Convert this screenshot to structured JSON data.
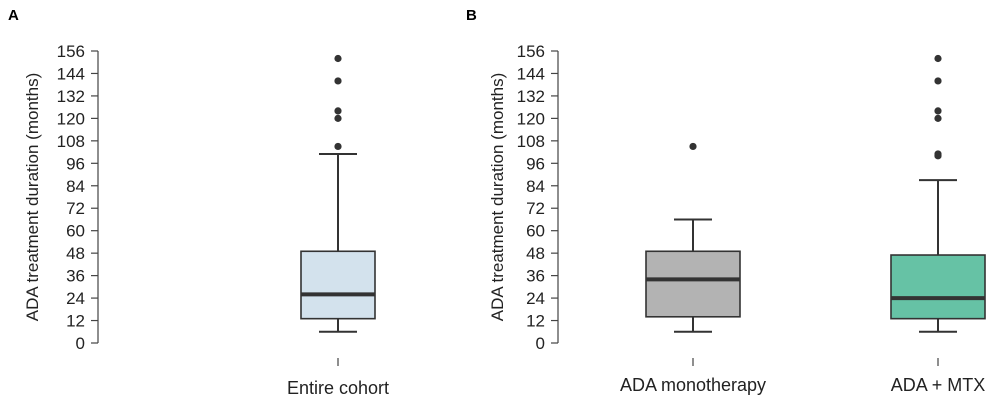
{
  "panels": [
    {
      "label": "A"
    },
    {
      "label": "B"
    }
  ],
  "chart_data": [
    {
      "type": "box",
      "panel": "A",
      "ylabel": "ADA treatment duration (months)",
      "ylim": [
        0,
        156
      ],
      "yticks": [
        0,
        12,
        24,
        36,
        48,
        60,
        72,
        84,
        96,
        108,
        120,
        132,
        144,
        156
      ],
      "categories": [
        "Entire cohort"
      ],
      "boxes": [
        {
          "category": "Entire cohort",
          "whisker_low": 6,
          "q1": 13,
          "median": 26,
          "q3": 49,
          "whisker_high": 101,
          "outliers": [
            105,
            120,
            124,
            140,
            152
          ],
          "color": "#d3e2ed"
        }
      ]
    },
    {
      "type": "box",
      "panel": "B",
      "ylabel": "ADA treatment duration (months)",
      "ylim": [
        0,
        156
      ],
      "yticks": [
        0,
        12,
        24,
        36,
        48,
        60,
        72,
        84,
        96,
        108,
        120,
        132,
        144,
        156
      ],
      "categories": [
        "ADA monotherapy",
        "ADA + MTX"
      ],
      "boxes": [
        {
          "category": "ADA monotherapy",
          "whisker_low": 6,
          "q1": 14,
          "median": 34,
          "q3": 49,
          "whisker_high": 66,
          "outliers": [
            105
          ],
          "color": "#b3b3b3"
        },
        {
          "category": "ADA + MTX",
          "whisker_low": 6,
          "q1": 13,
          "median": 24,
          "q3": 47,
          "whisker_high": 87,
          "outliers": [
            100,
            101,
            120,
            124,
            140,
            152
          ],
          "color": "#66c2a5"
        }
      ]
    }
  ]
}
